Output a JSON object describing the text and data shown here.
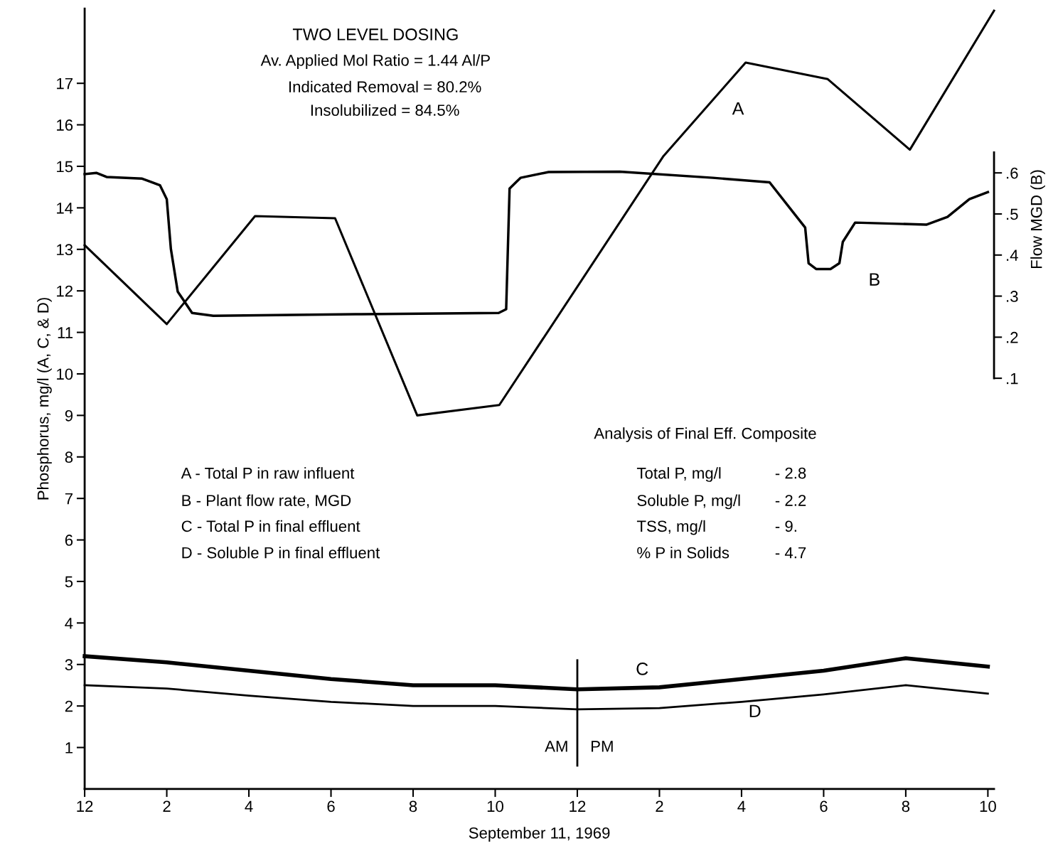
{
  "chart_data": {
    "type": "line",
    "title": "TWO LEVEL DOSING",
    "xlabel": "September 11, 1969",
    "ylabel": "Phosphorus, mg/l (A, C, & D)",
    "y2label": "Flow MGD (B)",
    "xlim": [
      "1969-09-11T00:00",
      "1969-09-11T22:09"
    ],
    "ylim": [
      0,
      18.8
    ],
    "y2lim": [
      -0.9,
      1.0
    ],
    "xticks": [
      {
        "value": "1969-09-11T00:00",
        "label": "12"
      },
      {
        "value": "1969-09-11T02:00",
        "label": "2"
      },
      {
        "value": "1969-09-11T04:00",
        "label": "4"
      },
      {
        "value": "1969-09-11T06:00",
        "label": "6"
      },
      {
        "value": "1969-09-11T08:00",
        "label": "8"
      },
      {
        "value": "1969-09-11T10:00",
        "label": "10"
      },
      {
        "value": "1969-09-11T12:00",
        "label": "12"
      },
      {
        "value": "1969-09-11T14:00",
        "label": "2"
      },
      {
        "value": "1969-09-11T16:00",
        "label": "4"
      },
      {
        "value": "1969-09-11T18:00",
        "label": "6"
      },
      {
        "value": "1969-09-11T20:00",
        "label": "8"
      },
      {
        "value": "1969-09-11T22:00",
        "label": "10"
      }
    ],
    "yticks": [
      1,
      2,
      3,
      4,
      5,
      6,
      7,
      8,
      9,
      10,
      11,
      12,
      13,
      14,
      15,
      16,
      17
    ],
    "y2ticks": [
      {
        "value": 0.1,
        "label": ".1"
      },
      {
        "value": 0.2,
        "label": ".2"
      },
      {
        "value": 0.3,
        "label": ".3"
      },
      {
        "value": 0.4,
        "label": ".4"
      },
      {
        "value": 0.5,
        "label": ".5"
      },
      {
        "value": 0.6,
        "label": ".6"
      }
    ],
    "grid": false,
    "legend": false,
    "marker": "none",
    "line_style": "solid",
    "series": [
      {
        "name": "A",
        "color": "#000000",
        "x": [
          "1969-09-11T00:00",
          "1969-09-11T02:00",
          "1969-09-11T04:09",
          "1969-09-11T06:06",
          "1969-09-11T08:06",
          "1969-09-11T10:06",
          "1969-09-11T14:06",
          "1969-09-11T16:06",
          "1969-09-11T18:06",
          "1969-09-11T20:06",
          "1969-09-11T22:09"
        ],
        "values": [
          13.1,
          11.2,
          13.8,
          13.75,
          9.0,
          9.25,
          15.25,
          17.5,
          17.1,
          15.4,
          18.75
        ]
      },
      {
        "name": "B",
        "color": "#000000",
        "axis": "y2",
        "x": [
          "1969-09-11T00:00",
          "1969-09-11T00:17",
          "1969-09-11T00:32",
          "1969-09-11T01:24",
          "1969-09-11T01:50",
          "1969-09-11T02:00",
          "1969-09-11T02:06",
          "1969-09-11T02:16",
          "1969-09-11T02:37",
          "1969-09-11T03:08",
          "1969-09-11T06:36",
          "1969-09-11T10:05",
          "1969-09-11T10:16",
          "1969-09-11T10:21",
          "1969-09-11T10:37",
          "1969-09-11T11:18",
          "1969-09-11T13:02",
          "1969-09-11T15:18",
          "1969-09-11T16:41",
          "1969-09-11T17:33",
          "1969-09-11T17:38",
          "1969-09-11T17:49",
          "1969-09-11T18:10",
          "1969-09-11T18:23",
          "1969-09-11T18:28",
          "1969-09-11T18:46",
          "1969-09-11T20:30",
          "1969-09-11T21:01",
          "1969-09-11T21:33",
          "1969-09-11T22:00"
        ],
        "values": [
          0.597,
          0.6,
          0.59,
          0.586,
          0.57,
          0.536,
          0.415,
          0.311,
          0.259,
          0.252,
          0.256,
          0.259,
          0.268,
          0.562,
          0.588,
          0.602,
          0.603,
          0.588,
          0.577,
          0.467,
          0.38,
          0.366,
          0.366,
          0.38,
          0.432,
          0.479,
          0.474,
          0.493,
          0.536,
          0.553
        ]
      },
      {
        "name": "C",
        "color": "#000000",
        "x": [
          "1969-09-11T00:00",
          "1969-09-11T02:00",
          "1969-09-11T04:00",
          "1969-09-11T06:00",
          "1969-09-11T08:00",
          "1969-09-11T10:00",
          "1969-09-11T12:00",
          "1969-09-11T14:00",
          "1969-09-11T16:00",
          "1969-09-11T18:00",
          "1969-09-11T20:00",
          "1969-09-11T22:00"
        ],
        "values": [
          3.2,
          3.05,
          2.85,
          2.65,
          2.5,
          2.5,
          2.4,
          2.45,
          2.65,
          2.85,
          3.15,
          2.95
        ]
      },
      {
        "name": "D",
        "color": "#000000",
        "x": [
          "1969-09-11T00:00",
          "1969-09-11T02:00",
          "1969-09-11T04:00",
          "1969-09-11T06:00",
          "1969-09-11T08:00",
          "1969-09-11T10:00",
          "1969-09-11T12:00",
          "1969-09-11T14:00",
          "1969-09-11T16:00",
          "1969-09-11T18:00",
          "1969-09-11T20:00",
          "1969-09-11T22:00"
        ],
        "values": [
          2.5,
          2.42,
          2.25,
          2.1,
          2.0,
          2.0,
          1.92,
          1.95,
          2.1,
          2.28,
          2.5,
          2.3
        ]
      }
    ],
    "ref_lines": [
      {
        "axis": "x",
        "value": "1969-09-11T12:00",
        "color": "#000000"
      }
    ],
    "annotations": [
      "Av. Applied Mol Ratio = 1.44 Al/P",
      "Indicated Removal = 80.2%",
      "Insolubilized = 84.5%",
      "A - Total P in raw influent",
      "B - Plant flow rate, MGD",
      "C - Total P in final effluent",
      "D - Soluble P in final effluent",
      "Analysis of Final Eff. Composite",
      "Total P, mg/l",
      "Soluble P, mg/l",
      "TSS, mg/l",
      "% P in Solids",
      "- 2.8",
      "- 2.2",
      "- 9.",
      "- 4.7",
      "AM",
      "PM"
    ]
  }
}
